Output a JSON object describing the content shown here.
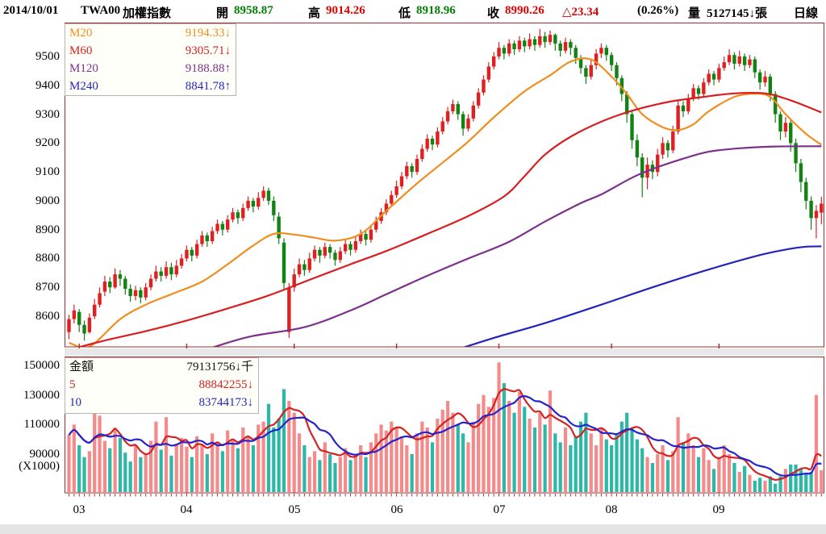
{
  "header": {
    "date": "2014/10/01",
    "symbol": "TWA00",
    "name": "加權指數",
    "open_label": "開",
    "open": "8958.87",
    "high_label": "高",
    "high": "9014.26",
    "low_label": "低",
    "low": "8918.96",
    "close_label": "收",
    "close": "8990.26",
    "change": "△23.34",
    "change_pct": "(0.26%)",
    "volume_label": "量",
    "volume_value": "5127145↓張",
    "period": "日線"
  },
  "main_legend": {
    "rows": [
      {
        "label": "M20",
        "value": "9194.33",
        "arrow": "↓",
        "color": "#ef8e1e"
      },
      {
        "label": "M60",
        "value": "9305.71",
        "arrow": "↓",
        "color": "#d81f1f"
      },
      {
        "label": "M120",
        "value": "9188.88",
        "arrow": "↑",
        "color": "#7d2f8d"
      },
      {
        "label": "M240",
        "value": "8841.78",
        "arrow": "↑",
        "color": "#2424bb"
      }
    ]
  },
  "volume_legend": {
    "rows": [
      {
        "label": "金額",
        "value": "79131756",
        "arrow": "↓",
        "suffix": "千",
        "color": "#111111"
      },
      {
        "label": "5",
        "value": "88842255",
        "arrow": "↓",
        "suffix": "",
        "color": "#d81f1f"
      },
      {
        "label": "10",
        "value": "83744173",
        "arrow": "↓",
        "suffix": "",
        "color": "#2424bb"
      }
    ]
  },
  "colors": {
    "panel_border": "#9b3030",
    "candle_up": "#e02020",
    "candle_down": "#128212",
    "ma20": "#ef8e1e",
    "ma60": "#d81f1f",
    "ma120": "#7d2f8d",
    "ma240": "#2424bb",
    "vol_bar_up": "#f58a8a",
    "vol_bar_down": "#2db7a7",
    "vol_ma5": "#d42222",
    "vol_ma10": "#2424cc",
    "tick": "#b03030"
  },
  "chart_data": {
    "type": "candlestick+volume",
    "title": "TWA00 加權指數 日線",
    "price_axis": {
      "ticks": [
        9500,
        9400,
        9300,
        9200,
        9100,
        9000,
        8900,
        8800,
        8700,
        8600
      ],
      "range": [
        8494,
        9612
      ]
    },
    "volume_axis": {
      "ticks": [
        150000,
        130000,
        110000,
        90000
      ],
      "unit": "(X1000)",
      "range": [
        63800,
        154400
      ]
    },
    "months": [
      {
        "label": "03",
        "day": 2
      },
      {
        "label": "04",
        "day": 23
      },
      {
        "label": "05",
        "day": 44
      },
      {
        "label": "06",
        "day": 64
      },
      {
        "label": "07",
        "day": 84
      },
      {
        "label": "08",
        "day": 106
      },
      {
        "label": "09",
        "day": 127
      }
    ],
    "candles": [
      [
        8545,
        8605,
        8520,
        8590
      ],
      [
        8590,
        8640,
        8575,
        8620
      ],
      [
        8615,
        8625,
        8545,
        8570
      ],
      [
        8570,
        8585,
        8515,
        8540
      ],
      [
        8545,
        8610,
        8540,
        8595
      ],
      [
        8600,
        8660,
        8590,
        8640
      ],
      [
        8640,
        8700,
        8630,
        8680
      ],
      [
        8685,
        8740,
        8670,
        8720
      ],
      [
        8720,
        8735,
        8680,
        8700
      ],
      [
        8700,
        8765,
        8695,
        8745
      ],
      [
        8745,
        8760,
        8705,
        8730
      ],
      [
        8730,
        8740,
        8675,
        8695
      ],
      [
        8695,
        8710,
        8650,
        8670
      ],
      [
        8670,
        8705,
        8655,
        8690
      ],
      [
        8690,
        8700,
        8645,
        8665
      ],
      [
        8665,
        8715,
        8655,
        8700
      ],
      [
        8700,
        8745,
        8690,
        8730
      ],
      [
        8730,
        8775,
        8720,
        8755
      ],
      [
        8755,
        8770,
        8720,
        8740
      ],
      [
        8740,
        8790,
        8730,
        8770
      ],
      [
        8770,
        8785,
        8725,
        8745
      ],
      [
        8745,
        8795,
        8735,
        8775
      ],
      [
        8775,
        8815,
        8765,
        8800
      ],
      [
        8800,
        8845,
        8790,
        8830
      ],
      [
        8830,
        8840,
        8790,
        8810
      ],
      [
        8810,
        8865,
        8800,
        8850
      ],
      [
        8850,
        8895,
        8840,
        8880
      ],
      [
        8880,
        8890,
        8840,
        8860
      ],
      [
        8860,
        8910,
        8850,
        8895
      ],
      [
        8895,
        8935,
        8885,
        8920
      ],
      [
        8920,
        8930,
        8880,
        8900
      ],
      [
        8900,
        8950,
        8890,
        8935
      ],
      [
        8935,
        8975,
        8925,
        8960
      ],
      [
        8960,
        8970,
        8920,
        8940
      ],
      [
        8940,
        8990,
        8930,
        8975
      ],
      [
        8975,
        9015,
        8965,
        9000
      ],
      [
        9000,
        9010,
        8960,
        8980
      ],
      [
        8980,
        9030,
        8970,
        9010
      ],
      [
        9010,
        9050,
        9000,
        9035
      ],
      [
        9035,
        9045,
        8985,
        9000
      ],
      [
        9000,
        9015,
        8930,
        8950
      ],
      [
        8945,
        8960,
        8850,
        8870
      ],
      [
        8855,
        8870,
        8690,
        8715
      ],
      [
        8545,
        8715,
        8525,
        8700
      ],
      [
        8700,
        8765,
        8685,
        8745
      ],
      [
        8745,
        8800,
        8735,
        8780
      ],
      [
        8780,
        8795,
        8740,
        8760
      ],
      [
        8760,
        8820,
        8750,
        8800
      ],
      [
        8800,
        8845,
        8790,
        8830
      ],
      [
        8830,
        8840,
        8785,
        8810
      ],
      [
        8810,
        8855,
        8800,
        8840
      ],
      [
        8840,
        8850,
        8800,
        8820
      ],
      [
        8820,
        8830,
        8775,
        8795
      ],
      [
        8795,
        8840,
        8785,
        8825
      ],
      [
        8825,
        8865,
        8815,
        8850
      ],
      [
        8850,
        8860,
        8810,
        8830
      ],
      [
        8830,
        8875,
        8820,
        8860
      ],
      [
        8860,
        8900,
        8850,
        8885
      ],
      [
        8885,
        8895,
        8845,
        8865
      ],
      [
        8865,
        8915,
        8855,
        8900
      ],
      [
        8900,
        8945,
        8890,
        8930
      ],
      [
        8930,
        8975,
        8920,
        8960
      ],
      [
        8960,
        9005,
        8950,
        8990
      ],
      [
        8990,
        9035,
        8980,
        9020
      ],
      [
        9020,
        9070,
        9010,
        9050
      ],
      [
        9050,
        9100,
        9040,
        9085
      ],
      [
        9085,
        9135,
        9075,
        9120
      ],
      [
        9120,
        9130,
        9080,
        9100
      ],
      [
        9100,
        9160,
        9090,
        9145
      ],
      [
        9145,
        9195,
        9135,
        9180
      ],
      [
        9180,
        9230,
        9170,
        9215
      ],
      [
        9215,
        9225,
        9175,
        9195
      ],
      [
        9195,
        9255,
        9185,
        9240
      ],
      [
        9240,
        9290,
        9230,
        9275
      ],
      [
        9275,
        9325,
        9265,
        9310
      ],
      [
        9310,
        9350,
        9300,
        9335
      ],
      [
        9335,
        9345,
        9280,
        9300
      ],
      [
        9300,
        9310,
        9225,
        9250
      ],
      [
        9250,
        9300,
        9240,
        9285
      ],
      [
        9285,
        9345,
        9275,
        9330
      ],
      [
        9330,
        9390,
        9320,
        9375
      ],
      [
        9375,
        9435,
        9365,
        9420
      ],
      [
        9420,
        9480,
        9410,
        9465
      ],
      [
        9465,
        9515,
        9455,
        9500
      ],
      [
        9500,
        9550,
        9490,
        9530
      ],
      [
        9530,
        9540,
        9490,
        9510
      ],
      [
        9510,
        9560,
        9500,
        9545
      ],
      [
        9545,
        9555,
        9505,
        9525
      ],
      [
        9525,
        9570,
        9515,
        9555
      ],
      [
        9555,
        9565,
        9515,
        9535
      ],
      [
        9535,
        9580,
        9525,
        9560
      ],
      [
        9560,
        9570,
        9520,
        9540
      ],
      [
        9540,
        9595,
        9530,
        9570
      ],
      [
        9570,
        9585,
        9530,
        9550
      ],
      [
        9550,
        9590,
        9540,
        9575
      ],
      [
        9575,
        9580,
        9520,
        9545
      ],
      [
        9545,
        9555,
        9500,
        9520
      ],
      [
        9520,
        9565,
        9510,
        9550
      ],
      [
        9550,
        9560,
        9505,
        9530
      ],
      [
        9530,
        9540,
        9475,
        9495
      ],
      [
        9495,
        9505,
        9440,
        9460
      ],
      [
        9460,
        9470,
        9405,
        9430
      ],
      [
        9430,
        9490,
        9420,
        9470
      ],
      [
        9470,
        9525,
        9455,
        9510
      ],
      [
        9510,
        9545,
        9495,
        9530
      ],
      [
        9530,
        9540,
        9485,
        9505
      ],
      [
        9505,
        9515,
        9450,
        9470
      ],
      [
        9470,
        9480,
        9400,
        9425
      ],
      [
        9425,
        9435,
        9345,
        9370
      ],
      [
        9370,
        9380,
        9270,
        9300
      ],
      [
        9300,
        9315,
        9180,
        9210
      ],
      [
        9210,
        9230,
        9120,
        9150
      ],
      [
        9150,
        9165,
        9012,
        9080
      ],
      [
        9080,
        9150,
        9040,
        9125
      ],
      [
        9125,
        9140,
        9075,
        9100
      ],
      [
        9100,
        9180,
        9085,
        9160
      ],
      [
        9160,
        9220,
        9145,
        9200
      ],
      [
        9200,
        9210,
        9150,
        9175
      ],
      [
        9175,
        9260,
        9165,
        9240
      ],
      [
        9240,
        9350,
        9230,
        9330
      ],
      [
        9330,
        9345,
        9290,
        9310
      ],
      [
        9310,
        9370,
        9300,
        9355
      ],
      [
        9355,
        9405,
        9345,
        9390
      ],
      [
        9390,
        9400,
        9350,
        9370
      ],
      [
        9370,
        9425,
        9360,
        9410
      ],
      [
        9410,
        9455,
        9400,
        9440
      ],
      [
        9440,
        9450,
        9400,
        9420
      ],
      [
        9420,
        9475,
        9410,
        9460
      ],
      [
        9460,
        9500,
        9450,
        9480
      ],
      [
        9480,
        9525,
        9470,
        9505
      ],
      [
        9505,
        9515,
        9455,
        9475
      ],
      [
        9475,
        9520,
        9465,
        9500
      ],
      [
        9500,
        9510,
        9450,
        9470
      ],
      [
        9470,
        9505,
        9460,
        9490
      ],
      [
        9490,
        9500,
        9425,
        9445
      ],
      [
        9445,
        9455,
        9385,
        9410
      ],
      [
        9410,
        9450,
        9395,
        9430
      ],
      [
        9430,
        9440,
        9345,
        9370
      ],
      [
        9370,
        9380,
        9270,
        9300
      ],
      [
        9300,
        9310,
        9210,
        9240
      ],
      [
        9240,
        9290,
        9220,
        9270
      ],
      [
        9270,
        9280,
        9170,
        9200
      ],
      [
        9200,
        9215,
        9100,
        9130
      ],
      [
        9130,
        9145,
        9030,
        9065
      ],
      [
        9065,
        9080,
        8970,
        9000
      ],
      [
        9000,
        9015,
        8900,
        8940
      ],
      [
        8940,
        8985,
        8870,
        8965
      ],
      [
        8959,
        9014,
        8919,
        8990
      ]
    ],
    "volumes_x1000": [
      103000,
      110000,
      96000,
      88000,
      92000,
      118000,
      116000,
      99000,
      94000,
      108000,
      101000,
      91000,
      85000,
      96000,
      88000,
      90000,
      99000,
      112000,
      93000,
      115000,
      89000,
      97000,
      101000,
      95000,
      88000,
      102000,
      96000,
      90000,
      104000,
      98000,
      92000,
      106000,
      100000,
      94000,
      108000,
      102000,
      96000,
      110000,
      112000,
      124000,
      108000,
      114000,
      134000,
      126000,
      118000,
      104000,
      96000,
      88000,
      92000,
      86000,
      98000,
      90000,
      84000,
      88000,
      94000,
      86000,
      90000,
      96000,
      88000,
      98000,
      104000,
      110000,
      106000,
      112000,
      108000,
      102000,
      96000,
      90000,
      104000,
      112000,
      108000,
      98000,
      114000,
      120000,
      126000,
      118000,
      110000,
      104000,
      98000,
      112000,
      124000,
      130000,
      122000,
      128000,
      152000,
      138000,
      126000,
      118000,
      132000,
      122000,
      114000,
      108000,
      118000,
      110000,
      133000,
      104000,
      98000,
      108000,
      96000,
      102000,
      112000,
      118000,
      104000,
      96000,
      108000,
      100000,
      96000,
      104000,
      112000,
      118000,
      108000,
      100000,
      94000,
      88000,
      84000,
      90000,
      96000,
      86000,
      92000,
      115000,
      98000,
      104000,
      96000,
      88000,
      94000,
      86000,
      80000,
      88000,
      96000,
      90000,
      84000,
      78000,
      82000,
      76000,
      72000,
      74000,
      72000,
      75000,
      70000,
      75000,
      80000,
      83000,
      83000,
      80000,
      77000,
      78000,
      130000,
      79132
    ],
    "ma_lines": {
      "m20": [
        [
          0,
          8508
        ],
        [
          4,
          8495
        ],
        [
          10,
          8590
        ],
        [
          15,
          8640
        ],
        [
          20,
          8676
        ],
        [
          26,
          8720
        ],
        [
          31,
          8780
        ],
        [
          36,
          8845
        ],
        [
          40,
          8885
        ],
        [
          44,
          8883
        ],
        [
          48,
          8872
        ],
        [
          52,
          8862
        ],
        [
          57,
          8885
        ],
        [
          62,
          8965
        ],
        [
          68,
          9060
        ],
        [
          73,
          9132
        ],
        [
          78,
          9205
        ],
        [
          83,
          9289
        ],
        [
          89,
          9379
        ],
        [
          94,
          9435
        ],
        [
          98,
          9482
        ],
        [
          102,
          9490
        ],
        [
          106,
          9430
        ],
        [
          109,
          9370
        ],
        [
          112,
          9300
        ],
        [
          116,
          9255
        ],
        [
          119,
          9245
        ],
        [
          122,
          9265
        ],
        [
          125,
          9310
        ],
        [
          130,
          9360
        ],
        [
          134,
          9371
        ],
        [
          137,
          9360
        ],
        [
          140,
          9300
        ],
        [
          144,
          9232
        ],
        [
          147,
          9194
        ]
      ],
      "m60": [
        [
          0,
          8484
        ],
        [
          8,
          8520
        ],
        [
          15,
          8548
        ],
        [
          23,
          8585
        ],
        [
          31,
          8627
        ],
        [
          39,
          8672
        ],
        [
          47,
          8726
        ],
        [
          55,
          8780
        ],
        [
          62,
          8826
        ],
        [
          70,
          8885
        ],
        [
          78,
          8947
        ],
        [
          85,
          9015
        ],
        [
          89,
          9085
        ],
        [
          93,
          9160
        ],
        [
          98,
          9222
        ],
        [
          104,
          9274
        ],
        [
          110,
          9312
        ],
        [
          117,
          9342
        ],
        [
          124,
          9360
        ],
        [
          130,
          9372
        ],
        [
          136,
          9372
        ],
        [
          141,
          9348
        ],
        [
          147,
          9306
        ]
      ],
      "m120": [
        [
          26,
          8480
        ],
        [
          35,
          8528
        ],
        [
          46,
          8562
        ],
        [
          55,
          8620
        ],
        [
          62,
          8676
        ],
        [
          70,
          8740
        ],
        [
          78,
          8800
        ],
        [
          86,
          8858
        ],
        [
          93,
          8928
        ],
        [
          100,
          8992
        ],
        [
          104,
          9022
        ],
        [
          110,
          9080
        ],
        [
          114,
          9110
        ],
        [
          120,
          9146
        ],
        [
          125,
          9170
        ],
        [
          131,
          9182
        ],
        [
          138,
          9188
        ],
        [
          147,
          9189
        ]
      ],
      "m240": [
        [
          75,
          8480
        ],
        [
          83,
          8525
        ],
        [
          93,
          8576
        ],
        [
          104,
          8640
        ],
        [
          114,
          8700
        ],
        [
          125,
          8762
        ],
        [
          135,
          8812
        ],
        [
          141,
          8834
        ],
        [
          144,
          8841
        ],
        [
          147,
          8842
        ]
      ]
    },
    "volume_ma_periods": [
      5,
      10
    ]
  }
}
